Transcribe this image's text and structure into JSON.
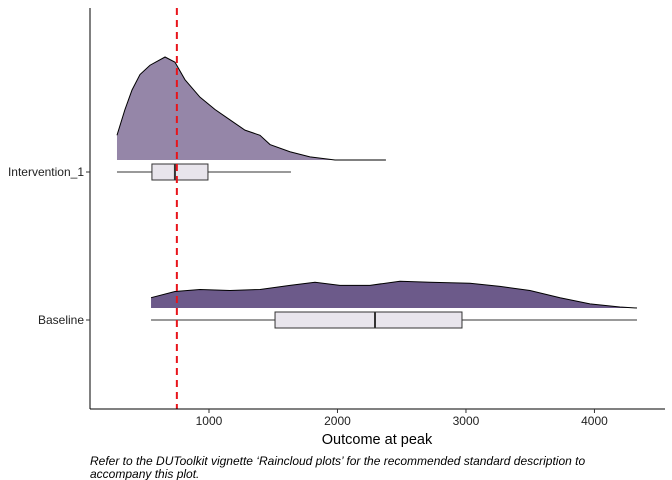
{
  "chart_data": {
    "type": "raincloud",
    "title": "",
    "xlabel": "Outcome at peak",
    "ylabel": "",
    "xlim": [
      74,
      4549
    ],
    "xticks": [
      1000,
      2000,
      3000,
      4000
    ],
    "xtick_labels": [
      "1000",
      "2000",
      "3000",
      "4000"
    ],
    "grid": false,
    "reference_line": {
      "value": 750,
      "color": "#e8141b",
      "style": "dashed"
    },
    "categories": [
      "Intervention_1",
      "Baseline"
    ],
    "groups": [
      {
        "label": "Intervention_1",
        "fill": "#9586a8",
        "box": {
          "whisker_low": 284,
          "q1": 556,
          "median": 735,
          "q3": 992,
          "whisker_high": 1638
        },
        "density_x": [
          284,
          346,
          401,
          463,
          541,
          658,
          735,
          813,
          930,
          1047,
          1163,
          1280,
          1397,
          1475,
          1630,
          1786,
          1981,
          2377
        ],
        "density_y": [
          0.24,
          0.49,
          0.68,
          0.83,
          0.92,
          1.0,
          0.95,
          0.78,
          0.61,
          0.49,
          0.39,
          0.29,
          0.24,
          0.15,
          0.08,
          0.03,
          0.0,
          0.0
        ]
      },
      {
        "label": "Baseline",
        "fill": "#6c5a8a",
        "box": {
          "whisker_low": 549,
          "q1": 1514,
          "median": 2292,
          "q3": 2969,
          "whisker_high": 4331
        },
        "density_x": [
          549,
          735,
          930,
          1163,
          1397,
          1630,
          1825,
          2019,
          2253,
          2486,
          2720,
          3031,
          3265,
          3498,
          3732,
          3965,
          4198,
          4331
        ],
        "density_y": [
          0.1,
          0.16,
          0.18,
          0.17,
          0.18,
          0.22,
          0.25,
          0.22,
          0.22,
          0.26,
          0.25,
          0.24,
          0.21,
          0.17,
          0.1,
          0.04,
          0.01,
          0.0
        ]
      }
    ],
    "box_fill": "#e8e5ec",
    "caption": "Refer to the DUToolkit vignette ‘Raincloud plots’ for the recommended standard description to accompany this plot."
  },
  "caption_lines": [
    "Refer to the DUToolkit vignette ‘Raincloud plots’ for the recommended standard description to",
    "accompany this plot."
  ]
}
